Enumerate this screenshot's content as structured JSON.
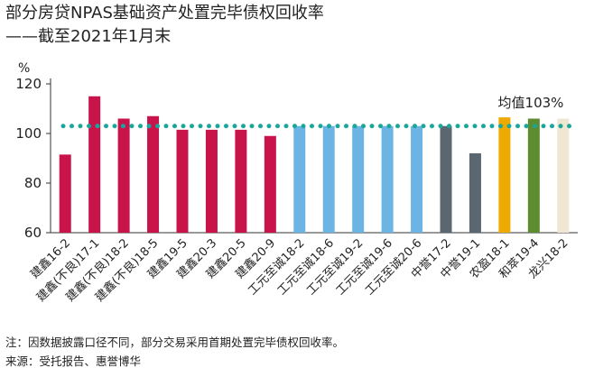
{
  "header": {
    "title_line1": "部分房贷NPAS基础资产处置完毕债权回收率",
    "title_line2": "——截至2021年1月末"
  },
  "footer": {
    "note": "注：因数据披露口径不同，部分交易采用首期处置完毕债权回收率。",
    "source": "来源：受托报告、惠誉博华"
  },
  "chart_data": {
    "type": "bar",
    "title": "部分房贷NPAS基础资产处置完毕债权回收率",
    "subtitle": "——截至2021年1月末",
    "ylabel": "%",
    "ylim": [
      60,
      120
    ],
    "yticks": [
      60,
      80,
      100,
      120
    ],
    "grid": false,
    "categories": [
      "建鑫16-2",
      "建鑫(不良)17-1",
      "建鑫(不良)18-2",
      "建鑫(不良)18-5",
      "建鑫19-5",
      "建鑫20-3",
      "建鑫20-5",
      "建鑫20-9",
      "工元至诚18-2",
      "工元至诚18-6",
      "工元至诚19-2",
      "工元至诚19-6",
      "工元至诚20-6",
      "中誉17-2",
      "中誉19-1",
      "农盈18-1",
      "和萃19-4",
      "龙兴18-2"
    ],
    "values": [
      91.5,
      115,
      106,
      107,
      101.5,
      101.5,
      101.5,
      99,
      103,
      103,
      103,
      103,
      103,
      103,
      92,
      106.5,
      106,
      106
    ],
    "bar_colors": [
      "#c8144a",
      "#c8144a",
      "#c8144a",
      "#c8144a",
      "#c8144a",
      "#c8144a",
      "#c8144a",
      "#c8144a",
      "#6cb4e4",
      "#6cb4e4",
      "#6cb4e4",
      "#6cb4e4",
      "#6cb4e4",
      "#5b6770",
      "#5b6770",
      "#eeaa00",
      "#5e8c31",
      "#efe7d2"
    ],
    "average": {
      "value": 103,
      "label": "均值103%",
      "color": "#1aa79a"
    }
  }
}
